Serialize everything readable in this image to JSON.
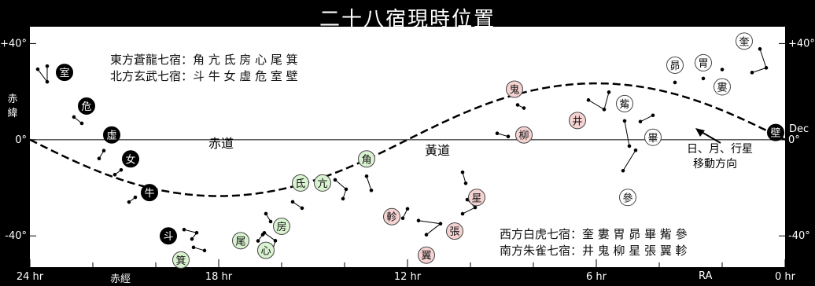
{
  "title": "二十八宿現時位置",
  "legend_top": [
    "東方蒼龍七宿：角 亢 氐 房 心 尾 箕",
    "北方玄武七宿：斗 牛 女 虛 危 室 壁"
  ],
  "legend_bottom": [
    "西方白虎七宿：奎 婁 胃 昴 畢 觜 參",
    "南方朱雀七宿：井 鬼 柳 星 張 翼 軫"
  ],
  "labels": {
    "equator": "赤道",
    "ecliptic": "黃道",
    "dec_axis": "赤緯",
    "ra_axis": "赤經",
    "ra_short": "RA",
    "dec_short": "Dec",
    "motion_note_line1": "日、月、行星",
    "motion_note_line2": "移動方向"
  },
  "colors": {
    "north": "#000000",
    "east": "#d9f2d0",
    "south": "#f6d3d3",
    "west": "#ffffff",
    "panel": "#ffffff"
  },
  "chart_data": {
    "type": "scatter",
    "x_ticks": [
      "24 hr",
      "18 hr",
      "12 hr",
      "6 hr",
      "0 hr"
    ],
    "x_tick_values": [
      24,
      18,
      12,
      6,
      0
    ],
    "y_ticks_left": [
      "+40°",
      "0°",
      "-40°"
    ],
    "y_ticks_right": [
      "+40°",
      "0°",
      "-40°"
    ],
    "y_tick_values": [
      40,
      0,
      -40
    ],
    "xlim": [
      24,
      0
    ],
    "ylim": [
      -53,
      47
    ],
    "mansions": [
      {
        "name": "室",
        "group": "north",
        "ra": 22.9,
        "dec": 28
      },
      {
        "name": "危",
        "group": "north",
        "ra": 22.2,
        "dec": 14
      },
      {
        "name": "虛",
        "group": "north",
        "ra": 21.4,
        "dec": 2
      },
      {
        "name": "女",
        "group": "north",
        "ra": 20.8,
        "dec": -8
      },
      {
        "name": "牛",
        "group": "north",
        "ra": 20.2,
        "dec": -22
      },
      {
        "name": "斗",
        "group": "north",
        "ra": 19.6,
        "dec": -40
      },
      {
        "name": "壁",
        "group": "north",
        "ra": 0.3,
        "dec": 3
      },
      {
        "name": "角",
        "group": "east",
        "ra": 13.3,
        "dec": -8
      },
      {
        "name": "亢",
        "group": "east",
        "ra": 14.7,
        "dec": -18
      },
      {
        "name": "氐",
        "group": "east",
        "ra": 15.4,
        "dec": -18
      },
      {
        "name": "房",
        "group": "east",
        "ra": 16.0,
        "dec": -36
      },
      {
        "name": "心",
        "group": "east",
        "ra": 16.5,
        "dec": -46
      },
      {
        "name": "尾",
        "group": "east",
        "ra": 17.3,
        "dec": -42
      },
      {
        "name": "箕",
        "group": "east",
        "ra": 19.2,
        "dec": -50
      },
      {
        "name": "井",
        "group": "south",
        "ra": 6.6,
        "dec": 8
      },
      {
        "name": "鬼",
        "group": "south",
        "ra": 8.6,
        "dec": 21
      },
      {
        "name": "柳",
        "group": "south",
        "ra": 8.3,
        "dec": 2
      },
      {
        "name": "星",
        "group": "south",
        "ra": 9.8,
        "dec": -24
      },
      {
        "name": "張",
        "group": "south",
        "ra": 10.5,
        "dec": -38
      },
      {
        "name": "翼",
        "group": "south",
        "ra": 11.4,
        "dec": -48
      },
      {
        "name": "軫",
        "group": "south",
        "ra": 12.5,
        "dec": -32
      },
      {
        "name": "奎",
        "group": "west",
        "ra": 1.3,
        "dec": 41
      },
      {
        "name": "婁",
        "group": "west",
        "ra": 2.0,
        "dec": 22
      },
      {
        "name": "胃",
        "group": "west",
        "ra": 2.6,
        "dec": 32
      },
      {
        "name": "昴",
        "group": "west",
        "ra": 3.5,
        "dec": 31
      },
      {
        "name": "畢",
        "group": "west",
        "ra": 4.2,
        "dec": 1
      },
      {
        "name": "觜",
        "group": "west",
        "ra": 5.1,
        "dec": 15
      },
      {
        "name": "參",
        "group": "west",
        "ra": 5.0,
        "dec": -24
      }
    ]
  }
}
